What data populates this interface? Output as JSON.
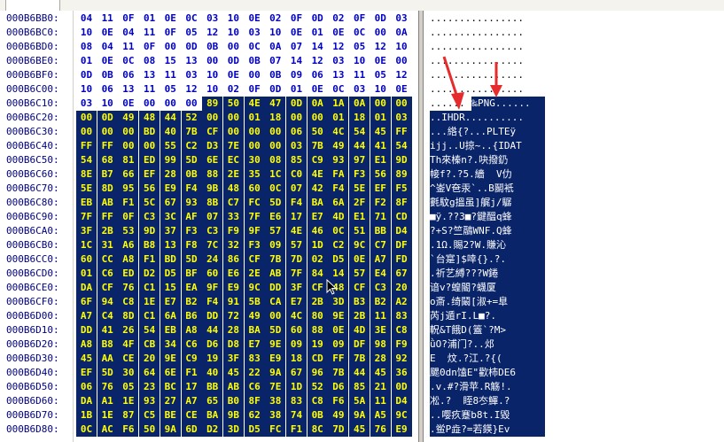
{
  "rows": [
    {
      "addr": "000B6BB0:",
      "hex": [
        "04",
        "11",
        "0F",
        "01",
        "0E",
        "0C",
        "03",
        "10",
        "0E",
        "02",
        "0F",
        "0D",
        "02",
        "0F",
        "0D",
        "03"
      ],
      "sel_from": 16,
      "ascii": "................"
    },
    {
      "addr": "000B6BC0:",
      "hex": [
        "10",
        "0E",
        "04",
        "11",
        "0F",
        "05",
        "12",
        "10",
        "03",
        "10",
        "0E",
        "01",
        "0E",
        "0C",
        "00",
        "0A"
      ],
      "sel_from": 16,
      "ascii": "................"
    },
    {
      "addr": "000B6BD0:",
      "hex": [
        "08",
        "04",
        "11",
        "0F",
        "00",
        "0D",
        "0B",
        "00",
        "0C",
        "0A",
        "07",
        "14",
        "12",
        "05",
        "12",
        "10"
      ],
      "sel_from": 16,
      "ascii": "................"
    },
    {
      "addr": "000B6BE0:",
      "hex": [
        "01",
        "0E",
        "0C",
        "08",
        "15",
        "13",
        "00",
        "0D",
        "0B",
        "07",
        "14",
        "12",
        "03",
        "10",
        "0E",
        "00"
      ],
      "sel_from": 16,
      "ascii": "................"
    },
    {
      "addr": "000B6BF0:",
      "hex": [
        "0D",
        "0B",
        "06",
        "13",
        "11",
        "03",
        "10",
        "0E",
        "00",
        "0B",
        "09",
        "06",
        "13",
        "11",
        "05",
        "12"
      ],
      "sel_from": 16,
      "ascii": "................"
    },
    {
      "addr": "000B6C00:",
      "hex": [
        "10",
        "06",
        "13",
        "11",
        "05",
        "12",
        "10",
        "02",
        "0F",
        "0D",
        "01",
        "0E",
        "0C",
        "03",
        "10",
        "0E"
      ],
      "sel_from": 16,
      "ascii": "................"
    },
    {
      "addr": "000B6C10:",
      "hex": [
        "03",
        "10",
        "0E",
        "00",
        "00",
        "00",
        "89",
        "50",
        "4E",
        "47",
        "0D",
        "0A",
        "1A",
        "0A",
        "00",
        "00"
      ],
      "sel_from": 6,
      "ascii": "......‰PNG......"
    },
    {
      "addr": "000B6C20:",
      "hex": [
        "00",
        "0D",
        "49",
        "48",
        "44",
        "52",
        "00",
        "00",
        "01",
        "18",
        "00",
        "00",
        "01",
        "18",
        "01",
        "03"
      ],
      "sel_from": 0,
      "ascii": "..IHDR.........."
    },
    {
      "addr": "000B6C30:",
      "hex": [
        "00",
        "00",
        "00",
        "BD",
        "40",
        "7B",
        "CF",
        "00",
        "00",
        "00",
        "06",
        "50",
        "4C",
        "54",
        "45",
        "FF"
      ],
      "sel_from": 0,
      "ascii": "...綹{?...PLTEÿ"
    },
    {
      "addr": "000B6C40:",
      "hex": [
        "FF",
        "FF",
        "00",
        "00",
        "55",
        "C2",
        "D3",
        "7E",
        "00",
        "00",
        "03",
        "7B",
        "49",
        "44",
        "41",
        "54"
      ],
      "sel_from": 0,
      "ascii": "ijj..U掠~..{IDAT"
    },
    {
      "addr": "000B6C50:",
      "hex": [
        "54",
        "68",
        "81",
        "ED",
        "99",
        "5D",
        "6E",
        "EC",
        "30",
        "08",
        "85",
        "C9",
        "93",
        "97",
        "E1",
        "9D"
      ],
      "sel_from": 0,
      "ascii": "Th來榛n?.吷撥釢"
    },
    {
      "addr": "000B6C60:",
      "hex": [
        "8E",
        "B7",
        "66",
        "EF",
        "28",
        "0B",
        "88",
        "2E",
        "35",
        "1C",
        "C0",
        "4E",
        "FA",
        "F3",
        "56",
        "89"
      ],
      "sel_from": 0,
      "ascii": "帹f?.?5.繬  V仂"
    },
    {
      "addr": "000B6C70:",
      "hex": [
        "5E",
        "8D",
        "95",
        "56",
        "E9",
        "F4",
        "9B",
        "48",
        "60",
        "0C",
        "07",
        "42",
        "F4",
        "5E",
        "EF",
        "F5"
      ],
      "sel_from": 0,
      "ascii": "^崟V夿汞`..B鬭衹"
    },
    {
      "addr": "000B6C80:",
      "hex": [
        "EB",
        "AB",
        "F1",
        "5C",
        "67",
        "93",
        "8B",
        "C7",
        "FC",
        "5D",
        "F4",
        "BA",
        "6A",
        "2F",
        "F2",
        "8F"
      ],
      "sel_from": 0,
      "ascii": "氀馼g搵虽]艉j/驏"
    },
    {
      "addr": "000B6C90:",
      "hex": [
        "7F",
        "FF",
        "0F",
        "C3",
        "3C",
        "AF",
        "07",
        "33",
        "7F",
        "E6",
        "17",
        "E7",
        "4D",
        "E1",
        "71",
        "CD"
      ],
      "sel_from": 0,
      "ascii": "■ÿ.??3■?鍵醞q蜂"
    },
    {
      "addr": "000B6CA0:",
      "hex": [
        "3F",
        "2B",
        "53",
        "9D",
        "37",
        "F3",
        "C3",
        "F9",
        "9F",
        "57",
        "4E",
        "46",
        "0C",
        "51",
        "BB",
        "D4"
      ],
      "sel_from": 0,
      "ascii": "?+S?竺鷊WNF.Q蜂"
    },
    {
      "addr": "000B6CB0:",
      "hex": [
        "1C",
        "31",
        "A6",
        "B8",
        "13",
        "F8",
        "7C",
        "32",
        "F3",
        "09",
        "57",
        "1D",
        "C2",
        "9C",
        "C7",
        "DF"
      ],
      "sel_from": 0,
      "ascii": ".1Ω.賜2?W.賺沁"
    },
    {
      "addr": "000B6CC0:",
      "hex": [
        "60",
        "CC",
        "A8",
        "F1",
        "BD",
        "5D",
        "24",
        "86",
        "CF",
        "7B",
        "7D",
        "02",
        "D5",
        "0E",
        "A7",
        "FD"
      ],
      "sel_from": 0,
      "ascii": "`台寔]$啈{}.?."
    },
    {
      "addr": "000B6CD0:",
      "hex": [
        "01",
        "C6",
        "ED",
        "D2",
        "D5",
        "BF",
        "60",
        "E6",
        "2E",
        "AB",
        "7F",
        "84",
        "14",
        "57",
        "E4",
        "67"
      ],
      "sel_from": 0,
      "ascii": ".祈艺縛???W錈"
    },
    {
      "addr": "000B6CE0:",
      "hex": [
        "DA",
        "CF",
        "76",
        "C1",
        "15",
        "EA",
        "9F",
        "E9",
        "9C",
        "DD",
        "3F",
        "CF",
        "48",
        "CF",
        "C3",
        "20"
      ],
      "sel_from": 0,
      "ascii": "谙v?蝗閽?蠛厦 "
    },
    {
      "addr": "000B6CF0:",
      "hex": [
        "6F",
        "94",
        "C8",
        "1E",
        "E7",
        "B2",
        "F4",
        "91",
        "5B",
        "CA",
        "E7",
        "2B",
        "3D",
        "B3",
        "B2",
        "A2"
      ],
      "sel_from": 0,
      "ascii": "o斎.绮鬫[淑+=臯"
    },
    {
      "addr": "000B6D00:",
      "hex": [
        "A7",
        "C4",
        "8D",
        "C1",
        "6A",
        "B6",
        "DD",
        "72",
        "49",
        "00",
        "4C",
        "80",
        "9E",
        "2B",
        "11",
        "83"
      ],
      "sel_from": 0,
      "ascii": "芮j遁rI.L■?."
    },
    {
      "addr": "000B6D10:",
      "hex": [
        "DD",
        "41",
        "26",
        "54",
        "EB",
        "A8",
        "44",
        "28",
        "BA",
        "5D",
        "60",
        "88",
        "0E",
        "4D",
        "3E",
        "C8"
      ],
      "sel_from": 0,
      "ascii": "軦&T餓D(篕`?M>"
    },
    {
      "addr": "000B6D20:",
      "hex": [
        "A8",
        "B8",
        "4F",
        "CB",
        "34",
        "C6",
        "D6",
        "D8",
        "E7",
        "9E",
        "09",
        "19",
        "09",
        "DF",
        "98",
        "F9"
      ],
      "sel_from": 0,
      "ascii": "ǜO?浦门?..邩"
    },
    {
      "addr": "000B6D30:",
      "hex": [
        "45",
        "AA",
        "CE",
        "20",
        "9E",
        "C9",
        "19",
        "3F",
        "83",
        "E9",
        "18",
        "CD",
        "FF",
        "7B",
        "28",
        "92"
      ],
      "sel_from": 0,
      "ascii": "E  炆.?江.?{("
    },
    {
      "addr": "000B6D40:",
      "hex": [
        "EF",
        "5D",
        "30",
        "64",
        "6E",
        "F1",
        "40",
        "45",
        "22",
        "9A",
        "67",
        "96",
        "7B",
        "44",
        "45",
        "36"
      ],
      "sel_from": 0,
      "ascii": "颸0dn馌E\"歡柿DE6"
    },
    {
      "addr": "000B6D50:",
      "hex": [
        "06",
        "76",
        "05",
        "23",
        "BC",
        "17",
        "BB",
        "AB",
        "C6",
        "7E",
        "1D",
        "52",
        "D6",
        "85",
        "21",
        "0D"
      ],
      "sel_from": 0,
      "ascii": ".v.#?滑苹.R觞!."
    },
    {
      "addr": "000B6D60:",
      "hex": [
        "DA",
        "A1",
        "1E",
        "93",
        "27",
        "A7",
        "65",
        "B0",
        "8F",
        "38",
        "83",
        "C8",
        "F6",
        "5A",
        "11",
        "D4"
      ],
      "sel_from": 0,
      "ascii": "凇.?  眰8冭鯶.?"
    },
    {
      "addr": "000B6D70:",
      "hex": [
        "1B",
        "1E",
        "87",
        "C5",
        "BE",
        "CE",
        "BA",
        "9B",
        "62",
        "38",
        "74",
        "0B",
        "49",
        "9A",
        "A5",
        "9C"
      ],
      "sel_from": 0,
      "ascii": "..嘤疚蹇b8t.I毀"
    },
    {
      "addr": "000B6D80:",
      "hex": [
        "0C",
        "AC",
        "F6",
        "50",
        "9A",
        "6D",
        "D2",
        "3D",
        "D5",
        "FC",
        "F1",
        "8C",
        "7D",
        "45",
        "76",
        "E9"
      ],
      "sel_from": 0,
      "ascii": ".鲎P歮?=若鍈}Ev"
    }
  ]
}
